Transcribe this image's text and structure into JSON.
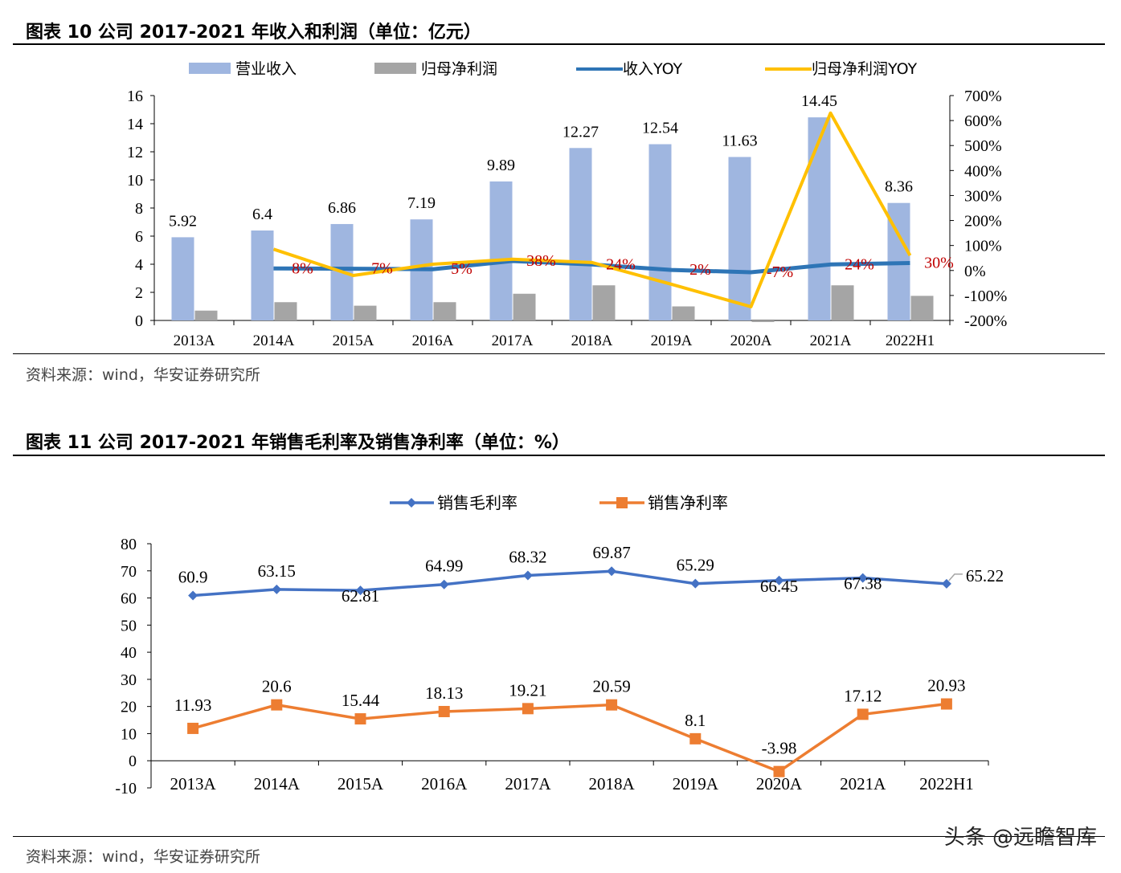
{
  "figure10": {
    "title": "图表 10 公司 2017-2021 年收入和利润（单位：亿元）",
    "source": "资料来源：wind，华安证券研究所"
  },
  "figure11": {
    "title": "图表 11 公司 2017-2021 年销售毛利率及销售净利率（单位：%）",
    "source": "资料来源：wind，华安证券研究所"
  },
  "watermark": "头条 @远瞻智库",
  "chart_data": [
    {
      "type": "bar",
      "categories": [
        "2013A",
        "2014A",
        "2015A",
        "2016A",
        "2017A",
        "2018A",
        "2019A",
        "2020A",
        "2021A",
        "2022H1"
      ],
      "ylim": [
        0,
        16
      ],
      "yticks": [
        "0",
        "2",
        "4",
        "6",
        "8",
        "10",
        "12",
        "14",
        "16"
      ],
      "y2lim": [
        -200,
        700
      ],
      "y2ticks": [
        "-200%",
        "-100%",
        "0%",
        "100%",
        "200%",
        "300%",
        "400%",
        "500%",
        "600%",
        "700%"
      ],
      "legend": "top",
      "series": [
        {
          "name": "营业收入",
          "kind": "bar",
          "axis": "left",
          "color": "#9fb6e0",
          "values": [
            5.92,
            6.4,
            6.86,
            7.19,
            9.89,
            12.27,
            12.54,
            11.63,
            14.45,
            8.36
          ],
          "labels": [
            "5.92",
            "6.4",
            "6.86",
            "7.19",
            "9.89",
            "12.27",
            "12.54",
            "11.63",
            "14.45",
            "8.36"
          ]
        },
        {
          "name": "归母净利润",
          "kind": "bar",
          "axis": "left",
          "color": "#a5a5a5",
          "values": [
            0.7,
            1.3,
            1.05,
            1.3,
            1.9,
            2.5,
            1.0,
            -0.1,
            2.5,
            1.75
          ]
        },
        {
          "name": "收入YOY",
          "kind": "line",
          "axis": "right",
          "color": "#2e75b6",
          "values": [
            null,
            8,
            7,
            5,
            38,
            24,
            2,
            -7,
            24,
            30
          ],
          "labels": [
            "",
            "8%",
            "7%",
            "5%",
            "38%",
            "24%",
            "2%",
            "-7%",
            "24%",
            "30%"
          ]
        },
        {
          "name": "归母净利润YOY",
          "kind": "line",
          "axis": "right",
          "color": "#ffc000",
          "values": [
            null,
            85,
            -20,
            25,
            45,
            32,
            -55,
            -145,
            630,
            60
          ]
        }
      ]
    },
    {
      "type": "line",
      "categories": [
        "2013A",
        "2014A",
        "2015A",
        "2016A",
        "2017A",
        "2018A",
        "2019A",
        "2020A",
        "2021A",
        "2022H1"
      ],
      "ylim": [
        -10,
        80
      ],
      "yticks": [
        "-10",
        "0",
        "10",
        "20",
        "30",
        "40",
        "50",
        "60",
        "70",
        "80"
      ],
      "legend": "top",
      "series": [
        {
          "name": "销售毛利率",
          "color": "#4472c4",
          "marker": "diamond",
          "values": [
            60.9,
            63.15,
            62.81,
            64.99,
            68.32,
            69.87,
            65.29,
            66.45,
            67.38,
            65.22
          ],
          "labels": [
            "60.9",
            "63.15",
            "62.81",
            "64.99",
            "68.32",
            "69.87",
            "65.29",
            "66.45",
            "67.38",
            "65.22"
          ]
        },
        {
          "name": "销售净利率",
          "color": "#ed7d31",
          "marker": "square",
          "values": [
            11.93,
            20.6,
            15.44,
            18.13,
            19.21,
            20.59,
            8.1,
            -3.98,
            17.12,
            20.93
          ],
          "labels": [
            "11.93",
            "20.6",
            "15.44",
            "18.13",
            "19.21",
            "20.59",
            "8.1",
            "-3.98",
            "17.12",
            "20.93"
          ]
        }
      ]
    }
  ]
}
